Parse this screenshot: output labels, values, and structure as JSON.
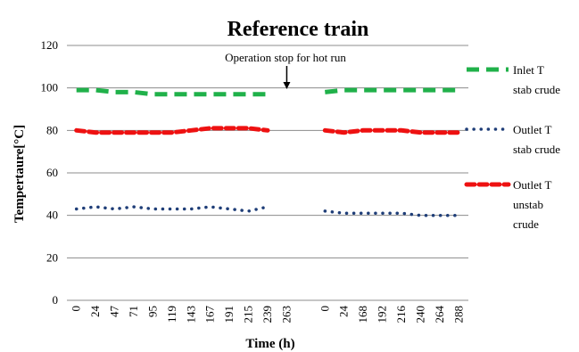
{
  "chart_data": {
    "type": "line",
    "title": "Reference train",
    "xlabel": "Time (h)",
    "ylabel": "Tempertaure[°C]",
    "ylim": [
      0,
      120
    ],
    "yticks": [
      0,
      20,
      40,
      60,
      80,
      100,
      120
    ],
    "grid": "horizontal",
    "legend": "right",
    "categories": [
      "0",
      "24",
      "47",
      "71",
      "95",
      "119",
      "143",
      "167",
      "191",
      "215",
      "239",
      "263",
      "",
      "0",
      "24",
      "168",
      "192",
      "216",
      "240",
      "264",
      "288"
    ],
    "segment_breaks": [
      11,
      12
    ],
    "annotation": {
      "text": "Operation stop for hot run",
      "at_category_index": 11
    },
    "series": [
      {
        "name": "Inlet T stab crude",
        "color": "#20b14a",
        "style": "long-dash",
        "values": [
          99,
          99,
          98,
          98,
          97,
          97,
          97,
          97,
          97,
          97,
          97,
          null,
          null,
          98,
          99,
          99,
          99,
          99,
          99,
          99,
          99
        ]
      },
      {
        "name": "Outlet T stab crude",
        "color": "#1f3e78",
        "style": "dots",
        "values": [
          43,
          44,
          43,
          44,
          43,
          43,
          43,
          44,
          43,
          42,
          44,
          null,
          null,
          42,
          41,
          41,
          41,
          41,
          40,
          40,
          40
        ]
      },
      {
        "name": "Outlet T unstab crude",
        "color": "#ee1111",
        "style": "dash",
        "values": [
          80,
          79,
          79,
          79,
          79,
          79,
          80,
          81,
          81,
          81,
          80,
          null,
          null,
          80,
          79,
          80,
          80,
          80,
          79,
          79,
          79
        ]
      }
    ],
    "legend_entries": [
      {
        "lines": [
          "Inlet T",
          "stab crude"
        ]
      },
      {
        "lines": [
          "Outlet T",
          "stab crude"
        ]
      },
      {
        "lines": [
          "Outlet T",
          "unstab",
          "crude"
        ]
      }
    ]
  }
}
